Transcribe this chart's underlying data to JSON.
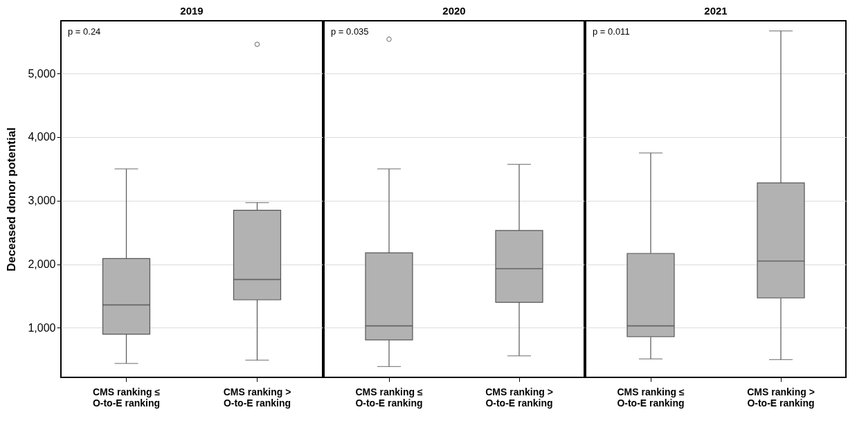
{
  "chart_data": [
    {
      "type": "box",
      "title": "2019",
      "ylabel": "Deceased donor potential",
      "categories": [
        "CMS ranking ≤\nO-to-E ranking",
        "CMS ranking >\nO-to-E ranking"
      ],
      "ylim": [
        220,
        5830
      ],
      "yticks": [
        {
          "value": 1000,
          "label": "1,000"
        },
        {
          "value": 2000,
          "label": "2,000"
        },
        {
          "value": 3000,
          "label": "3,000"
        },
        {
          "value": 4000,
          "label": "4,000"
        },
        {
          "value": 5000,
          "label": "5,000"
        }
      ],
      "grid": "y",
      "annotations": [
        "p = 0.24"
      ],
      "series": [
        {
          "color": "#b2b2b2",
          "boxes": [
            {
              "low": 440,
              "q1": 900,
              "median": 1360,
              "q3": 2090,
              "high": 3500
            },
            {
              "low": 490,
              "q1": 1440,
              "median": 1760,
              "q3": 2850,
              "high": 2970,
              "outliers": [
                5460
              ]
            }
          ]
        }
      ]
    },
    {
      "type": "box",
      "title": "2020",
      "categories": [
        "CMS ranking ≤\nO-to-E ranking",
        "CMS ranking >\nO-to-E ranking"
      ],
      "ylim": [
        220,
        5830
      ],
      "yticks": [
        1000,
        2000,
        3000,
        4000,
        5000
      ],
      "grid": "y",
      "tick_labels": "x",
      "annotations": [
        "p = 0.035"
      ],
      "series": [
        {
          "color": "#b2b2b2",
          "boxes": [
            {
              "low": 390,
              "q1": 810,
              "median": 1030,
              "q3": 2180,
              "high": 3500,
              "outliers": [
                5540
              ]
            },
            {
              "low": 560,
              "q1": 1400,
              "median": 1930,
              "q3": 2530,
              "high": 3570
            }
          ]
        }
      ]
    },
    {
      "type": "box",
      "title": "2021",
      "categories": [
        "CMS ranking ≤\nO-to-E ranking",
        "CMS ranking >\nO-to-E ranking"
      ],
      "ylim": [
        220,
        5830
      ],
      "yticks": [
        1000,
        2000,
        3000,
        4000,
        5000
      ],
      "grid": "y",
      "tick_labels": "x",
      "annotations": [
        "p = 0.011"
      ],
      "series": [
        {
          "color": "#b2b2b2",
          "boxes": [
            {
              "low": 510,
              "q1": 860,
              "median": 1030,
              "q3": 2170,
              "high": 3750
            },
            {
              "low": 500,
              "q1": 1470,
              "median": 2050,
              "q3": 3280,
              "high": 5670
            }
          ]
        }
      ]
    }
  ]
}
